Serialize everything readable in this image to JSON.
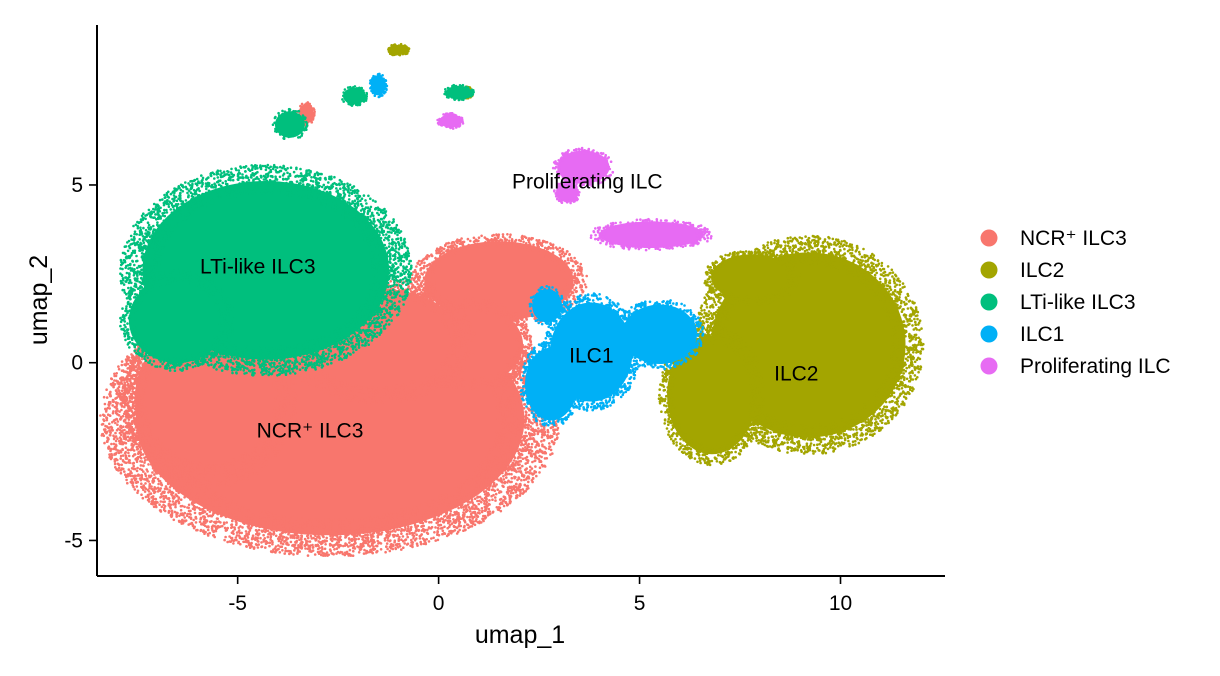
{
  "chart_data": {
    "type": "scatter",
    "title": "",
    "xlabel": "umap_1",
    "ylabel": "umap_2",
    "xlim": [
      -8.5,
      12.6
    ],
    "ylim": [
      -6.0,
      9.5
    ],
    "x_ticks": [
      {
        "value": -5,
        "label": "-5"
      },
      {
        "value": 0,
        "label": "0"
      },
      {
        "value": 5,
        "label": "5"
      },
      {
        "value": 10,
        "label": "10"
      }
    ],
    "y_ticks": [
      {
        "value": -5,
        "label": "-5"
      },
      {
        "value": 0,
        "label": "0"
      },
      {
        "value": 5,
        "label": "5"
      }
    ],
    "grid": false,
    "legend_position": "right",
    "series": [
      {
        "name": "NCR⁺ ILC3",
        "color": "#F8766D",
        "regions": [
          {
            "center": [
              -2.7,
              -1.6
            ],
            "radius": [
              5.2,
              3.5
            ]
          },
          {
            "center": [
              -5.7,
              -1.0
            ],
            "radius": [
              2.0,
              2.3
            ]
          },
          {
            "center": [
              1.5,
              2.3
            ],
            "radius": [
              2.0,
              1.2
            ]
          },
          {
            "center": [
              0.8,
              0.5
            ],
            "radius": [
              1.4,
              1.2
            ]
          },
          {
            "center": [
              -1.5,
              0.6
            ],
            "radius": [
              2.2,
              1.6
            ]
          },
          {
            "center": [
              -3.3,
              7.0
            ],
            "radius": [
              0.2,
              0.3
            ]
          }
        ],
        "label": {
          "text": "NCR⁺ ILC3",
          "x": -3.2,
          "y": -1.9
        }
      },
      {
        "name": "ILC2",
        "color": "#A3A500",
        "regions": [
          {
            "center": [
              9.2,
              0.5
            ],
            "radius": [
              2.6,
              2.8
            ]
          },
          {
            "center": [
              6.8,
              -0.9
            ],
            "radius": [
              1.2,
              1.8
            ]
          },
          {
            "center": [
              7.8,
              2.4
            ],
            "radius": [
              1.1,
              0.7
            ]
          },
          {
            "center": [
              -1.0,
              8.8
            ],
            "radius": [
              0.25,
              0.15
            ]
          },
          {
            "center": [
              0.7,
              7.6
            ],
            "radius": [
              0.15,
              0.15
            ]
          }
        ],
        "label": {
          "text": "ILC2",
          "x": 8.9,
          "y": -0.3
        }
      },
      {
        "name": "LTi-like ILC3",
        "color": "#00BF7D",
        "regions": [
          {
            "center": [
              -4.3,
              2.6
            ],
            "radius": [
              3.3,
              2.7
            ]
          },
          {
            "center": [
              -6.5,
              1.2
            ],
            "radius": [
              1.3,
              1.3
            ]
          },
          {
            "center": [
              -3.7,
              6.7
            ],
            "radius": [
              0.4,
              0.4
            ]
          },
          {
            "center": [
              -2.1,
              7.5
            ],
            "radius": [
              0.3,
              0.25
            ]
          },
          {
            "center": [
              0.5,
              7.6
            ],
            "radius": [
              0.35,
              0.2
            ]
          }
        ],
        "label": {
          "text": "LTi-like ILC3",
          "x": -4.5,
          "y": 2.7
        }
      },
      {
        "name": "ILC1",
        "color": "#00B0F6",
        "regions": [
          {
            "center": [
              3.8,
              0.3
            ],
            "radius": [
              1.1,
              1.5
            ]
          },
          {
            "center": [
              5.5,
              0.8
            ],
            "radius": [
              1.0,
              0.9
            ]
          },
          {
            "center": [
              2.8,
              -0.6
            ],
            "radius": [
              0.7,
              1.1
            ]
          },
          {
            "center": [
              2.7,
              1.6
            ],
            "radius": [
              0.4,
              0.5
            ]
          },
          {
            "center": [
              -1.5,
              7.8
            ],
            "radius": [
              0.2,
              0.3
            ]
          }
        ],
        "label": {
          "text": "ILC1",
          "x": 3.8,
          "y": 0.2
        }
      },
      {
        "name": "Proliferating ILC",
        "color": "#E76BF3",
        "regions": [
          {
            "center": [
              3.6,
              5.5
            ],
            "radius": [
              0.7,
              0.5
            ]
          },
          {
            "center": [
              3.2,
              4.8
            ],
            "radius": [
              0.3,
              0.3
            ]
          },
          {
            "center": [
              5.3,
              3.6
            ],
            "radius": [
              1.4,
              0.4
            ]
          },
          {
            "center": [
              0.3,
              6.8
            ],
            "radius": [
              0.3,
              0.2
            ]
          }
        ],
        "label": {
          "text": "Proliferating ILC",
          "x": 3.7,
          "y": 5.1
        }
      }
    ]
  }
}
